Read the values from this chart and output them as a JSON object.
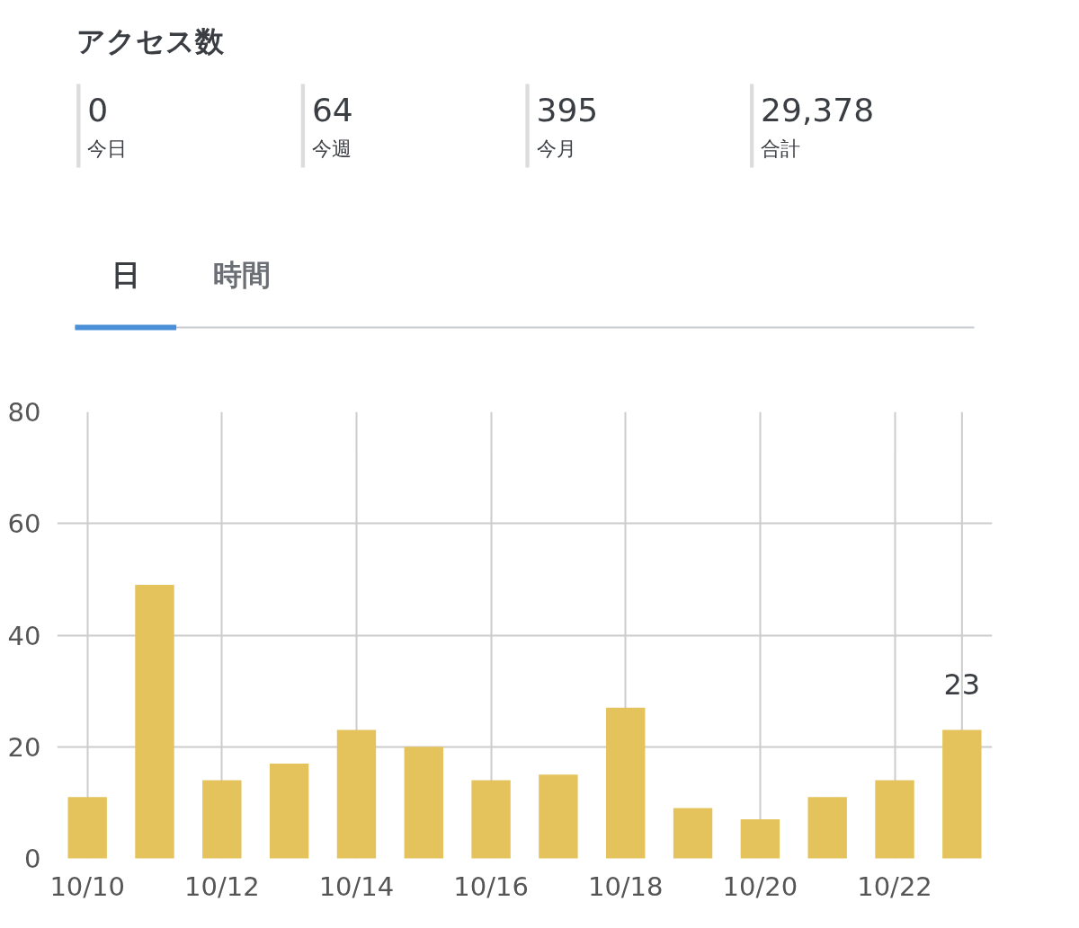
{
  "chart_data": [
    {
      "type": "other",
      "title": "アクセス数",
      "categories": [
        "今日",
        "今週",
        "今月",
        "合計"
      ],
      "values": [
        0,
        64,
        395,
        29378
      ],
      "value_labels": [
        "0",
        "64",
        "395",
        "29,378"
      ],
      "annotations": [
        "日",
        "時間"
      ]
    },
    {
      "type": "bar",
      "categories": [
        "10/10",
        null,
        "10/12",
        null,
        "10/14",
        null,
        "10/16",
        null,
        "10/18",
        null,
        "10/20",
        null,
        "10/22",
        null
      ],
      "values": [
        11,
        49,
        14,
        17,
        23,
        20,
        14,
        15,
        27,
        9,
        7,
        11,
        14,
        23
      ],
      "value_labels": [
        null,
        null,
        null,
        null,
        null,
        null,
        null,
        null,
        null,
        null,
        null,
        null,
        null,
        "23"
      ],
      "color": "#e4c35c",
      "ylim": [
        0,
        80
      ],
      "yticks": [
        0,
        20,
        40,
        60,
        80
      ],
      "grid": true
    }
  ]
}
